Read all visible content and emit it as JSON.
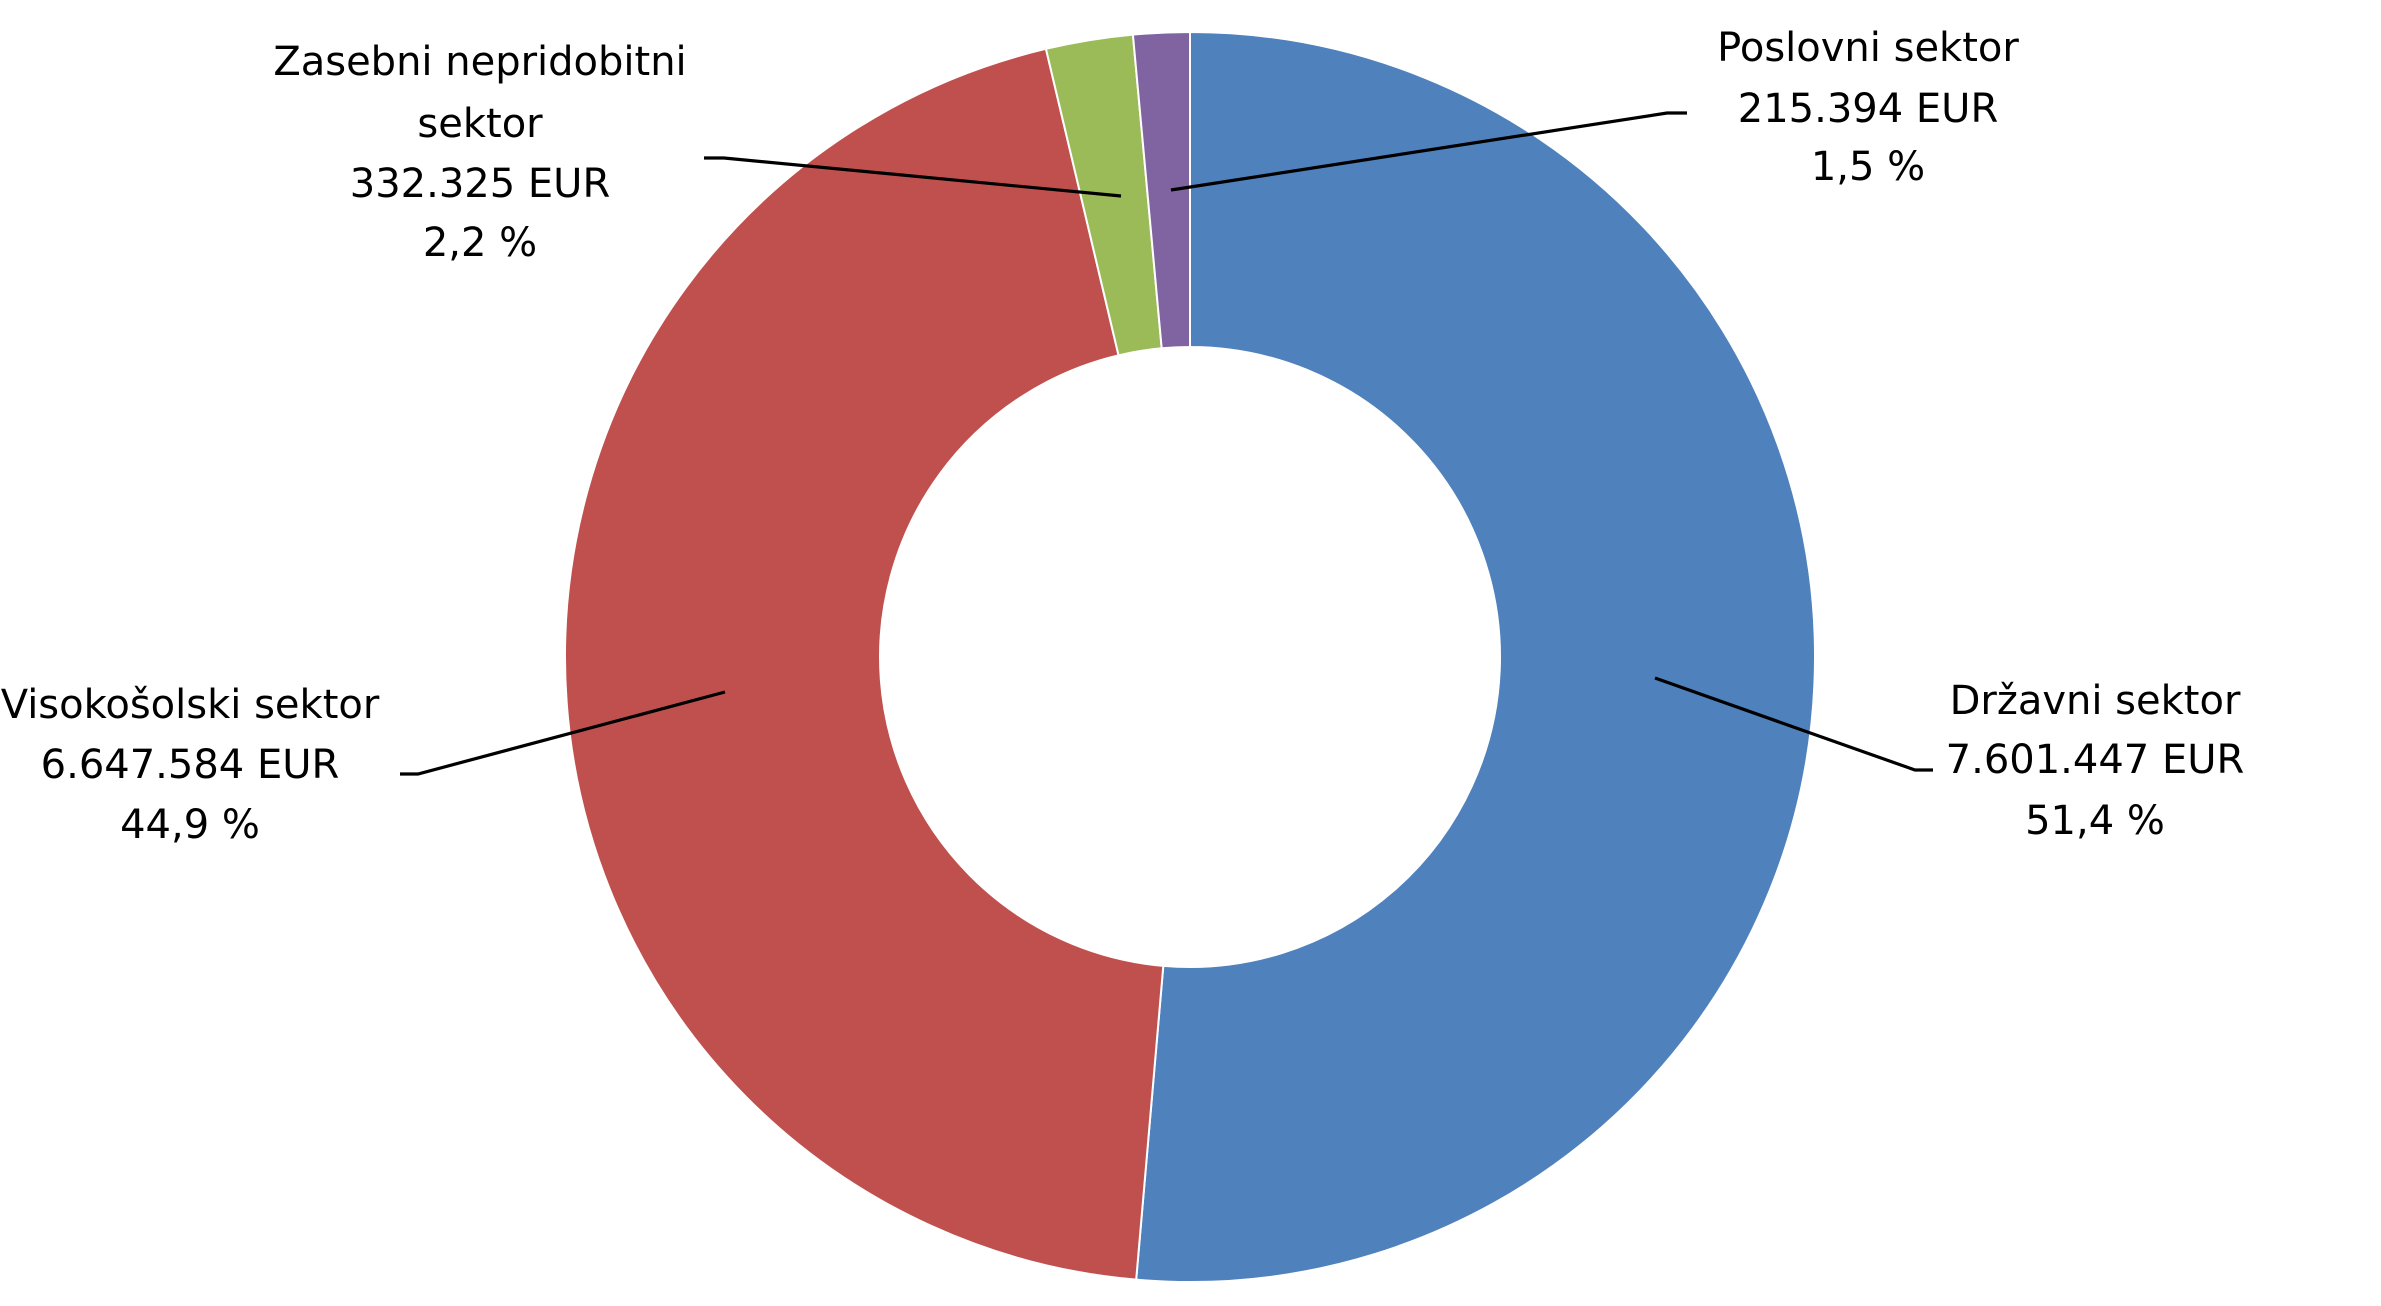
{
  "chart_data": {
    "type": "donut",
    "unit": "EUR",
    "series": [
      {
        "name": "Državni sektor",
        "value": 7601447,
        "value_label": "7.601.447 EUR",
        "percent": 51.4,
        "percent_label": "51,4 %",
        "color": "#4f81bd"
      },
      {
        "name": "Visokošolski sektor",
        "value": 6647584,
        "value_label": "6.647.584 EUR",
        "percent": 44.9,
        "percent_label": "44,9 %",
        "color": "#c0504d"
      },
      {
        "name": "Zasebni nepridobitni sektor",
        "name_lines": [
          "Zasebni nepridobitni",
          "sektor"
        ],
        "value": 332325,
        "value_label": "332.325 EUR",
        "percent": 2.2,
        "percent_label": "2,2 %",
        "color": "#9bbb59"
      },
      {
        "name": "Poslovni sektor",
        "value": 215394,
        "value_label": "215.394 EUR",
        "percent": 1.5,
        "percent_label": "1,5 %",
        "color": "#8064a2"
      }
    ]
  }
}
